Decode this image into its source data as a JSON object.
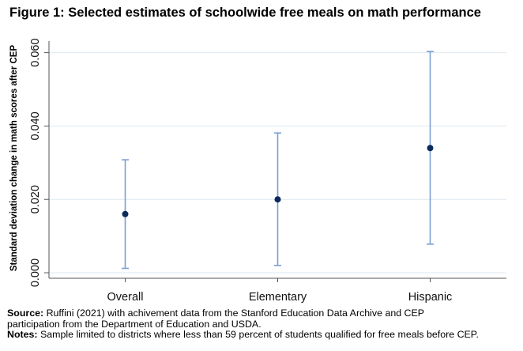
{
  "page": {
    "title": "Figure 1: Selected estimates of schoolwide free meals on math performance"
  },
  "chart_data": {
    "type": "scatter",
    "title": "Figure 1: Selected estimates of schoolwide free meals on math performance",
    "xlabel": "",
    "ylabel": "Standard deviation change in math scores after CEP",
    "categories": [
      "Overall",
      "Elementary",
      "Hispanic"
    ],
    "estimates": [
      0.016,
      0.02,
      0.034
    ],
    "ci_lower": [
      0.0012,
      0.002,
      0.0078
    ],
    "ci_upper": [
      0.0308,
      0.0381,
      0.0603
    ],
    "ylim": [
      -0.0015,
      0.0625
    ],
    "yticks": [
      0.0,
      0.02,
      0.04,
      0.06
    ],
    "ytick_labels": [
      "0.000",
      "0.020",
      "0.040",
      "0.060"
    ],
    "grid": true,
    "legend": "none",
    "colors": {
      "point": "#0b2a5b",
      "errorbar": "#7a9fd3",
      "grid": "#dde9ef",
      "axis": "#555555"
    }
  },
  "footer": {
    "source_label": "Source:",
    "source_text_1": " Ruffini (2021) with achivement data from the Stanford Education Data Archive and CEP",
    "source_text_2": "participation from the Department of Education and USDA.",
    "notes_label": "Notes:",
    "notes_text": " Sample limited to districts where less than 59 percent of students qualified for free meals before CEP."
  }
}
